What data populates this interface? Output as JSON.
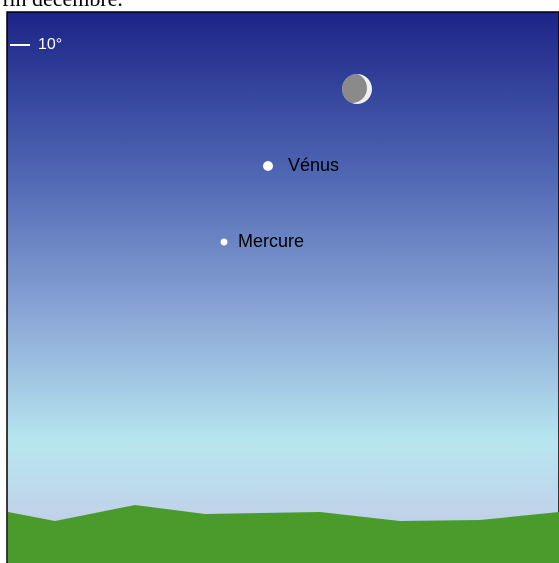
{
  "caption": "fin décembre.",
  "scale_label": "10°",
  "objects": [
    {
      "label": "Vénus"
    },
    {
      "label": "Mercure"
    }
  ]
}
